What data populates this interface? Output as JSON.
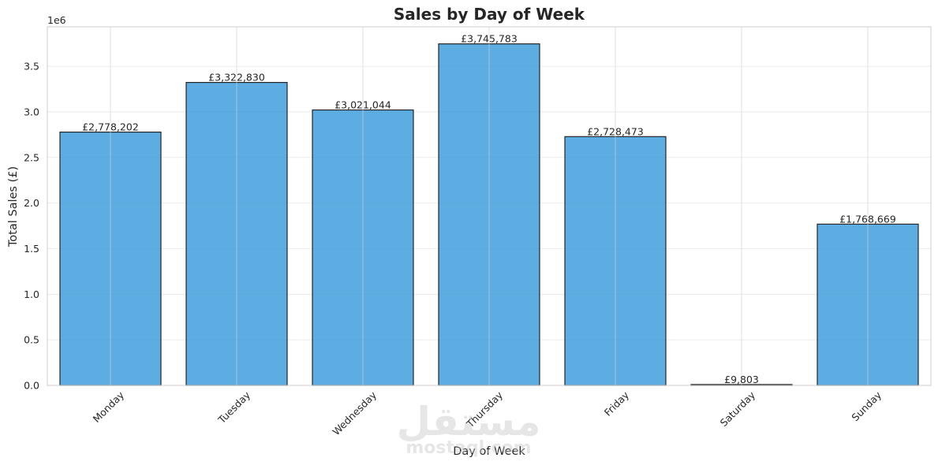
{
  "chart_data": {
    "type": "bar",
    "title": "Sales by Day of Week",
    "xlabel": "Day of Week",
    "ylabel": "Total Sales (£)",
    "y_offset_label": "1e6",
    "categories": [
      "Monday",
      "Tuesday",
      "Wednesday",
      "Thursday",
      "Friday",
      "Saturday",
      "Sunday"
    ],
    "values": [
      2778202,
      3322830,
      3021044,
      3745783,
      2728473,
      9803,
      1768669
    ],
    "data_labels": [
      "£2,778,202",
      "£3,322,830",
      "£3,021,044",
      "£3,745,783",
      "£2,728,473",
      "£9,803",
      "£1,768,669"
    ],
    "yticks": [
      0.0,
      0.5,
      1.0,
      1.5,
      2.0,
      2.5,
      3.0,
      3.5
    ],
    "ytick_labels": [
      "0.0",
      "0.5",
      "1.0",
      "1.5",
      "2.0",
      "2.5",
      "3.0",
      "3.5"
    ],
    "ylim": [
      0,
      3933072
    ],
    "grid": true,
    "bar_color": "#3498db",
    "bar_edge_color": "#262626",
    "grid_color": "#e6e6e6",
    "spine_color": "#cccccc"
  },
  "watermark": {
    "arabic": "مستقل",
    "latin": "mostaql.com"
  }
}
